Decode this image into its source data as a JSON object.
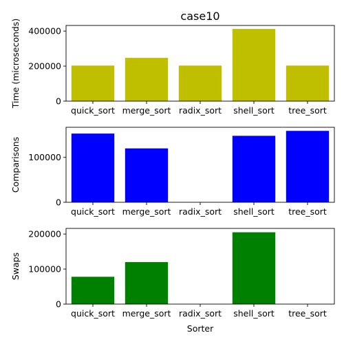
{
  "chart_data": [
    {
      "type": "bar",
      "title": "case10",
      "xlabel": "",
      "ylabel": "Time (microseconds)",
      "categories": [
        "quick_sort",
        "merge_sort",
        "radix_sort",
        "shell_sort",
        "tree_sort"
      ],
      "values": [
        203000,
        247000,
        203000,
        412000,
        203000
      ],
      "ylim": [
        0,
        432000
      ],
      "yticks": [
        0,
        200000,
        400000
      ],
      "color": "#bfbf00"
    },
    {
      "type": "bar",
      "title": "",
      "xlabel": "",
      "ylabel": "Comparisons",
      "categories": [
        "quick_sort",
        "merge_sort",
        "radix_sort",
        "shell_sort",
        "tree_sort"
      ],
      "values": [
        153000,
        120000,
        0,
        148000,
        159000
      ],
      "ylim": [
        0,
        167000
      ],
      "yticks": [
        0,
        100000
      ],
      "color": "#0000ff"
    },
    {
      "type": "bar",
      "title": "",
      "xlabel": "Sorter",
      "ylabel": "Swaps",
      "categories": [
        "quick_sort",
        "merge_sort",
        "radix_sort",
        "shell_sort",
        "tree_sort"
      ],
      "values": [
        78000,
        120000,
        0,
        205000,
        0
      ],
      "ylim": [
        0,
        216000
      ],
      "yticks": [
        0,
        100000,
        200000
      ],
      "color": "#008000"
    }
  ]
}
